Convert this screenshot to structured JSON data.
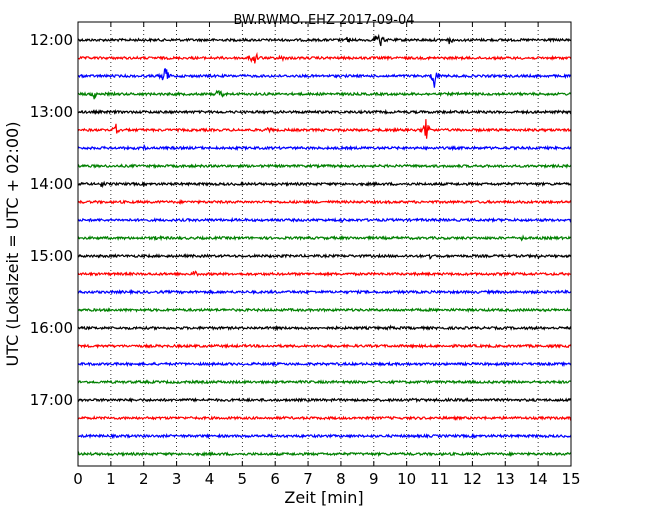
{
  "chart_data": {
    "type": "line",
    "title": "BW.RWMO..EHZ 2017-09-04",
    "xlabel": "Zeit  [min]",
    "ylabel": "UTC (Lokalzeit = UTC + 02:00)",
    "xlim": [
      0,
      15
    ],
    "x_ticks": [
      "0",
      "1",
      "2",
      "3",
      "4",
      "5",
      "6",
      "7",
      "8",
      "9",
      "10",
      "11",
      "12",
      "13",
      "14",
      "15"
    ],
    "y_ticks": [
      "12:00",
      "13:00",
      "14:00",
      "15:00",
      "16:00",
      "17:00"
    ],
    "grid": "vertical dotted lines at each minute",
    "colors": [
      "#000000",
      "#ff0000",
      "#0000ff",
      "#008000"
    ],
    "rows": [
      {
        "start": "12:00",
        "color": "#000000",
        "events": [
          {
            "x": 9.15,
            "amp": 16
          },
          {
            "x": 8.2,
            "amp": 4
          },
          {
            "x": 11.3,
            "amp": 4
          }
        ]
      },
      {
        "start": "12:15",
        "color": "#ff0000",
        "events": [
          {
            "x": 5.35,
            "amp": 13
          },
          {
            "x": 6.2,
            "amp": 3
          }
        ]
      },
      {
        "start": "12:30",
        "color": "#0000ff",
        "events": [
          {
            "x": 2.65,
            "amp": 15
          },
          {
            "x": 10.85,
            "amp": 13
          }
        ]
      },
      {
        "start": "12:45",
        "color": "#008000",
        "events": [
          {
            "x": 0.5,
            "amp": 6
          },
          {
            "x": 4.3,
            "amp": 7
          }
        ]
      },
      {
        "start": "13:00",
        "color": "#000000",
        "events": []
      },
      {
        "start": "13:15",
        "color": "#ff0000",
        "events": [
          {
            "x": 1.15,
            "amp": 8
          },
          {
            "x": 10.6,
            "amp": 14
          },
          {
            "x": 5.8,
            "amp": 3
          }
        ]
      },
      {
        "start": "13:30",
        "color": "#0000ff",
        "events": [
          {
            "x": 2.0,
            "amp": 3
          }
        ]
      },
      {
        "start": "13:45",
        "color": "#008000",
        "events": []
      },
      {
        "start": "14:00",
        "color": "#000000",
        "events": [
          {
            "x": 0.7,
            "amp": 3
          }
        ]
      },
      {
        "start": "14:15",
        "color": "#ff0000",
        "events": []
      },
      {
        "start": "14:30",
        "color": "#0000ff",
        "events": [
          {
            "x": 8.0,
            "amp": 2
          }
        ]
      },
      {
        "start": "14:45",
        "color": "#008000",
        "events": [
          {
            "x": 2.4,
            "amp": 2
          },
          {
            "x": 13.5,
            "amp": 2
          }
        ]
      },
      {
        "start": "15:00",
        "color": "#000000",
        "events": [
          {
            "x": 10.7,
            "amp": 3
          },
          {
            "x": 14.0,
            "amp": 2
          }
        ]
      },
      {
        "start": "15:15",
        "color": "#ff0000",
        "events": [
          {
            "x": 3.55,
            "amp": 4
          }
        ]
      },
      {
        "start": "15:30",
        "color": "#0000ff",
        "events": []
      },
      {
        "start": "15:45",
        "color": "#008000",
        "events": []
      },
      {
        "start": "16:00",
        "color": "#000000",
        "events": [
          {
            "x": 9.5,
            "amp": 2
          }
        ]
      },
      {
        "start": "16:15",
        "color": "#ff0000",
        "events": []
      },
      {
        "start": "16:30",
        "color": "#0000ff",
        "events": []
      },
      {
        "start": "16:45",
        "color": "#008000",
        "events": []
      },
      {
        "start": "17:00",
        "color": "#000000",
        "events": [
          {
            "x": 10.2,
            "amp": 2
          }
        ]
      },
      {
        "start": "17:15",
        "color": "#ff0000",
        "events": []
      },
      {
        "start": "17:30",
        "color": "#0000ff",
        "events": []
      },
      {
        "start": "17:45",
        "color": "#008000",
        "events": []
      }
    ]
  }
}
